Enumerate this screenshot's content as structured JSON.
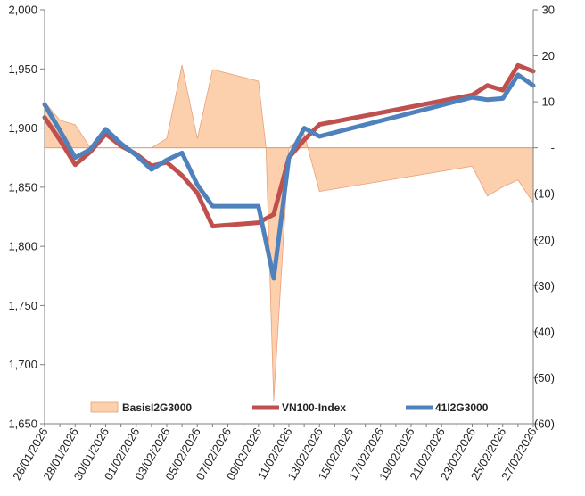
{
  "chart_data": {
    "type": "line",
    "title": "",
    "xlabel": "",
    "ylabel": "",
    "ylim": [
      1650,
      2000
    ],
    "y2lim": [
      -60,
      30
    ],
    "left_ticks": [
      "1,650",
      "1,700",
      "1,750",
      "1,800",
      "1,850",
      "1,900",
      "1,950",
      "2,000"
    ],
    "right_ticks": [
      "(60)",
      "(50)",
      "(40)",
      "(30)",
      "(20)",
      "(10)",
      "-",
      "10",
      "20",
      "30"
    ],
    "x_ticks": [
      "26/01/2026",
      "28/01/2026",
      "30/01/2026",
      "01/02/2026",
      "03/02/2026",
      "05/02/2026",
      "07/02/2026",
      "09/02/2026",
      "11/02/2026",
      "13/02/2026",
      "15/02/2026",
      "17/02/2026",
      "19/02/2026",
      "21/02/2026",
      "23/02/2026",
      "25/02/2026",
      "27/02/2026"
    ],
    "x_start": "26/01/2026",
    "x_days": 32,
    "series": [
      {
        "name": "BasisI2G3000",
        "axis": "right",
        "kind": "area",
        "color": "#fcd0ad",
        "points": [
          [
            0,
            10
          ],
          [
            1,
            6
          ],
          [
            2,
            5
          ],
          [
            3,
            0
          ],
          [
            4,
            0
          ],
          [
            5,
            0
          ],
          [
            6,
            0
          ],
          [
            7,
            0
          ],
          [
            8,
            2
          ],
          [
            9,
            18
          ],
          [
            10,
            2
          ],
          [
            11,
            17
          ],
          [
            14,
            14.5
          ],
          [
            14.5,
            0
          ],
          [
            15,
            -55
          ],
          [
            16,
            0
          ],
          [
            17,
            3
          ],
          [
            18,
            -9.5
          ],
          [
            28,
            -4
          ],
          [
            29,
            -10.5
          ],
          [
            30,
            -8.5
          ],
          [
            31,
            -7
          ],
          [
            32,
            -12
          ]
        ]
      },
      {
        "name": "VN100-Index",
        "axis": "left",
        "kind": "line",
        "color": "#c0504d",
        "points": [
          [
            0,
            1909
          ],
          [
            1,
            1890
          ],
          [
            2,
            1869
          ],
          [
            3,
            1880
          ],
          [
            4,
            1895
          ],
          [
            5,
            1885
          ],
          [
            6,
            1878
          ],
          [
            7,
            1868
          ],
          [
            8,
            1871
          ],
          [
            9,
            1860
          ],
          [
            10,
            1845
          ],
          [
            11,
            1817
          ],
          [
            14,
            1820
          ],
          [
            15,
            1827
          ],
          [
            16,
            1875
          ],
          [
            17,
            1890
          ],
          [
            18,
            1903
          ],
          [
            28,
            1928
          ],
          [
            29,
            1936
          ],
          [
            30,
            1932
          ],
          [
            31,
            1953
          ],
          [
            32,
            1948
          ]
        ]
      },
      {
        "name": "41I2G3000",
        "axis": "left",
        "kind": "line",
        "color": "#4f81bd",
        "points": [
          [
            0,
            1920
          ],
          [
            1,
            1898
          ],
          [
            2,
            1875
          ],
          [
            3,
            1882
          ],
          [
            4,
            1899
          ],
          [
            5,
            1887
          ],
          [
            6,
            1877
          ],
          [
            7,
            1865
          ],
          [
            8,
            1873
          ],
          [
            9,
            1879
          ],
          [
            10,
            1852
          ],
          [
            11,
            1834
          ],
          [
            14,
            1834
          ],
          [
            15,
            1773
          ],
          [
            16,
            1875
          ],
          [
            17,
            1900
          ],
          [
            18,
            1893
          ],
          [
            28,
            1926
          ],
          [
            29,
            1924
          ],
          [
            30,
            1925
          ],
          [
            31,
            1945
          ],
          [
            32,
            1936
          ]
        ]
      }
    ],
    "legend": [
      "BasisI2G3000",
      "VN100-Index",
      "41I2G3000"
    ],
    "legend_position": "bottom-inside",
    "grid": false
  }
}
